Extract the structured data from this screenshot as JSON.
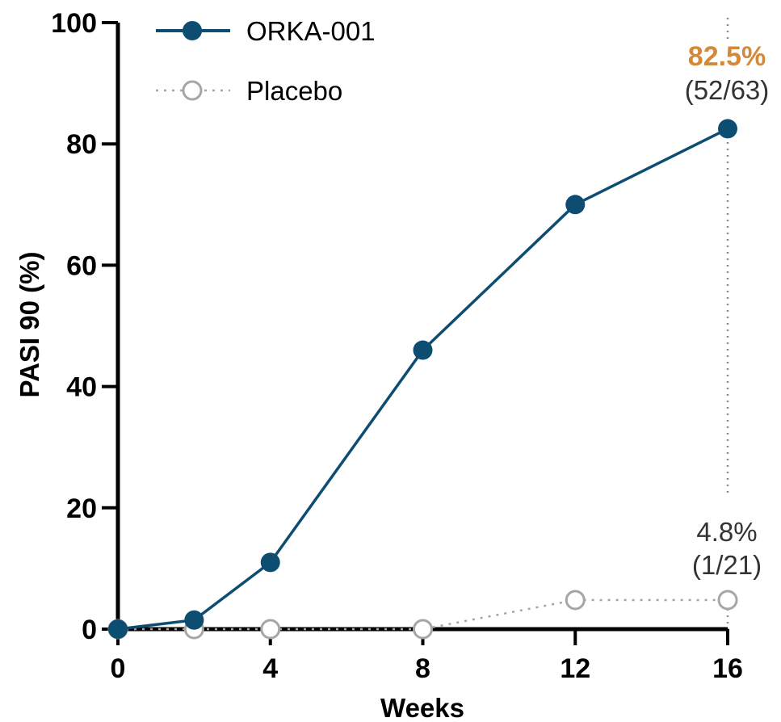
{
  "colors": {
    "orka": "#0e4d72",
    "placebo": "#a6a6a6",
    "highlight": "#d4893a",
    "annotation": "#333333",
    "guide": "#8c8c8c"
  },
  "chart_data": {
    "type": "line",
    "xlabel": "Weeks",
    "ylabel": "PASI 90 (%)",
    "xlim": [
      0,
      16
    ],
    "ylim": [
      0,
      100
    ],
    "xticks": [
      0,
      4,
      8,
      12,
      16
    ],
    "yticks": [
      0,
      20,
      40,
      60,
      80,
      100
    ],
    "grid": false,
    "legend": "top-left",
    "series": [
      {
        "name": "ORKA-001",
        "style": "solid line, filled circle markers",
        "color": "#0e4d72",
        "x": [
          0,
          2,
          4,
          8,
          12,
          16
        ],
        "y": [
          0,
          1.5,
          11,
          46,
          70,
          82.5
        ]
      },
      {
        "name": "Placebo",
        "style": "dotted line, open circle markers",
        "color": "#a6a6a6",
        "x": [
          0,
          2,
          4,
          8,
          12,
          16
        ],
        "y": [
          0,
          0,
          0,
          0,
          4.8,
          4.8
        ]
      }
    ],
    "annotations": {
      "orka_final": {
        "value": "82.5%",
        "detail": "(52/63)"
      },
      "placebo_final": {
        "value": "4.8%",
        "detail": "(1/21)"
      }
    }
  }
}
